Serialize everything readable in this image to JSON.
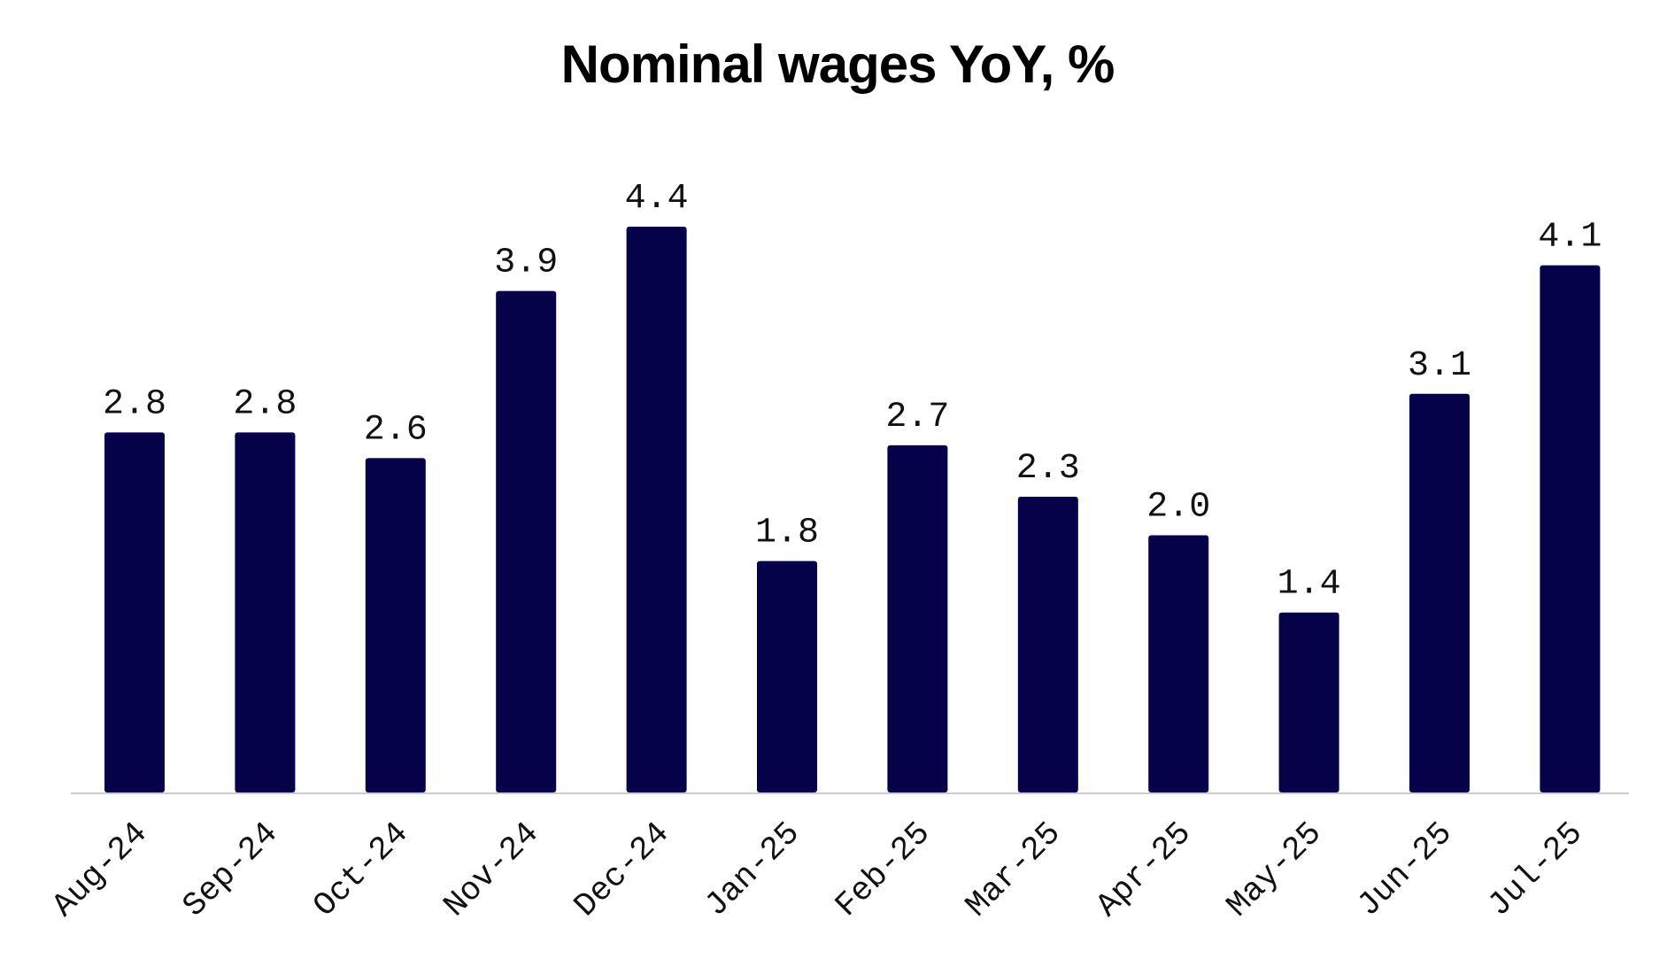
{
  "chart_data": {
    "type": "bar",
    "title": "Nominal wages YoY, %",
    "categories": [
      "Aug-24",
      "Sep-24",
      "Oct-24",
      "Nov-24",
      "Dec-24",
      "Jan-25",
      "Feb-25",
      "Mar-25",
      "Apr-25",
      "May-25",
      "Jun-25",
      "Jul-25"
    ],
    "values": [
      2.8,
      2.8,
      2.6,
      3.9,
      4.4,
      1.8,
      2.7,
      2.3,
      2.0,
      1.4,
      3.1,
      4.1
    ],
    "data_labels": [
      "2.8",
      "2.8",
      "2.6",
      "3.9",
      "4.4",
      "1.8",
      "2.7",
      "2.3",
      "2.0",
      "1.4",
      "3.1",
      "4.1"
    ],
    "xlabel": "",
    "ylabel": "",
    "ylim": [
      0,
      4.4
    ],
    "grid": false,
    "legend": "none",
    "colors": {
      "bar": "#05024a",
      "axis": "#cccccc",
      "text": "#111111"
    }
  }
}
